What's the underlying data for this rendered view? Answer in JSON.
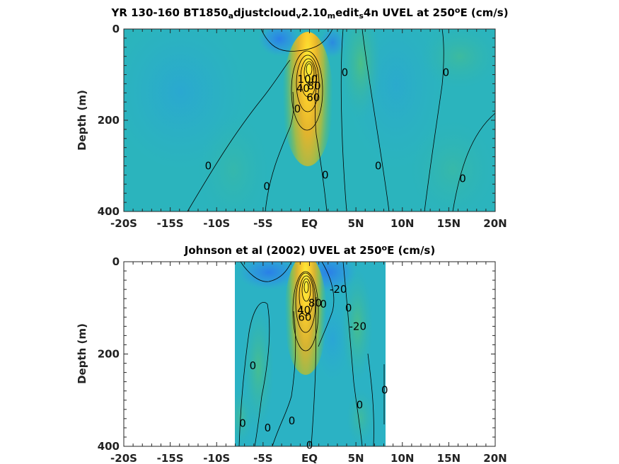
{
  "chart_data": [
    {
      "type": "heatmap",
      "title": {
        "prefix": "YR 130-160 BT1850",
        "parts": [
          {
            "text": "a",
            "sub": true
          },
          {
            "text": "djustcloud"
          },
          {
            "text": "v",
            "sub": true
          },
          {
            "text": "2.10"
          },
          {
            "text": "m",
            "sub": true
          },
          {
            "text": "edit"
          },
          {
            "text": "s",
            "sub": true
          },
          {
            "text": "4n UVEL at 250"
          },
          {
            "text": "o",
            "sup": true
          },
          {
            "text": "E (cm/s)"
          }
        ]
      },
      "ylabel": "Depth (m)",
      "xlim": [
        -20,
        20
      ],
      "ylim": [
        0,
        400
      ],
      "x_ticks": [
        -20,
        -15,
        -10,
        -5,
        0,
        5,
        10,
        15,
        20
      ],
      "x_tick_labels": [
        "-20S",
        "-15S",
        "-10S",
        "-5S",
        "EQ",
        "5N",
        "10N",
        "15N",
        "20N"
      ],
      "y_ticks": [
        0,
        200,
        400
      ],
      "y_tick_labels": [
        "0",
        "200",
        "400"
      ],
      "data_xlim": [
        -20,
        20
      ],
      "contour_labels": [
        {
          "text": "0",
          "x": -10.9,
          "y": 300
        },
        {
          "text": "0",
          "x": -4.6,
          "y": 345
        },
        {
          "text": "0",
          "x": -1.3,
          "y": 175
        },
        {
          "text": "0",
          "x": 1.7,
          "y": 320
        },
        {
          "text": "0",
          "x": 3.8,
          "y": 95
        },
        {
          "text": "0",
          "x": 7.4,
          "y": 300
        },
        {
          "text": "0",
          "x": 14.7,
          "y": 95
        },
        {
          "text": "0",
          "x": 16.5,
          "y": 328
        },
        {
          "text": "60",
          "x": 0.4,
          "y": 150
        },
        {
          "text": "40",
          "x": -0.7,
          "y": 130
        },
        {
          "text": "80",
          "x": 0.5,
          "y": 125
        },
        {
          "text": "100",
          "x": -0.2,
          "y": 110
        }
      ]
    },
    {
      "type": "heatmap",
      "title": {
        "prefix": "Johnson et al (2002) UVEL at 250",
        "parts": [
          {
            "text": "o",
            "sup": true
          },
          {
            "text": "E (cm/s)"
          }
        ]
      },
      "ylabel": "Depth (m)",
      "xlim": [
        -20,
        20
      ],
      "ylim": [
        0,
        400
      ],
      "x_ticks": [
        -20,
        -15,
        -10,
        -5,
        0,
        5,
        10,
        15,
        20
      ],
      "x_tick_labels": [
        "-20S",
        "-15S",
        "-10S",
        "-5S",
        "EQ",
        "5N",
        "10N",
        "15N",
        "20N"
      ],
      "y_ticks": [
        0,
        200,
        400
      ],
      "y_tick_labels": [
        "0",
        "200",
        "400"
      ],
      "data_xlim": [
        -8,
        8.3
      ],
      "contour_labels": [
        {
          "text": "0",
          "x": -7.2,
          "y": 350
        },
        {
          "text": "0",
          "x": -6.1,
          "y": 225
        },
        {
          "text": "0",
          "x": -4.5,
          "y": 360
        },
        {
          "text": "0",
          "x": -1.9,
          "y": 345
        },
        {
          "text": "0",
          "x": 0,
          "y": 398
        },
        {
          "text": "0",
          "x": 1.5,
          "y": 92
        },
        {
          "text": "0",
          "x": 4.2,
          "y": 100
        },
        {
          "text": "0",
          "x": 5.4,
          "y": 310
        },
        {
          "text": "0",
          "x": 8.1,
          "y": 278
        },
        {
          "text": "-20",
          "x": 3.1,
          "y": 60
        },
        {
          "text": "-20",
          "x": 5.2,
          "y": 140
        },
        {
          "text": "40",
          "x": -0.6,
          "y": 105
        },
        {
          "text": "60",
          "x": -0.5,
          "y": 120
        },
        {
          "text": "80",
          "x": 0.6,
          "y": 90
        }
      ]
    }
  ]
}
